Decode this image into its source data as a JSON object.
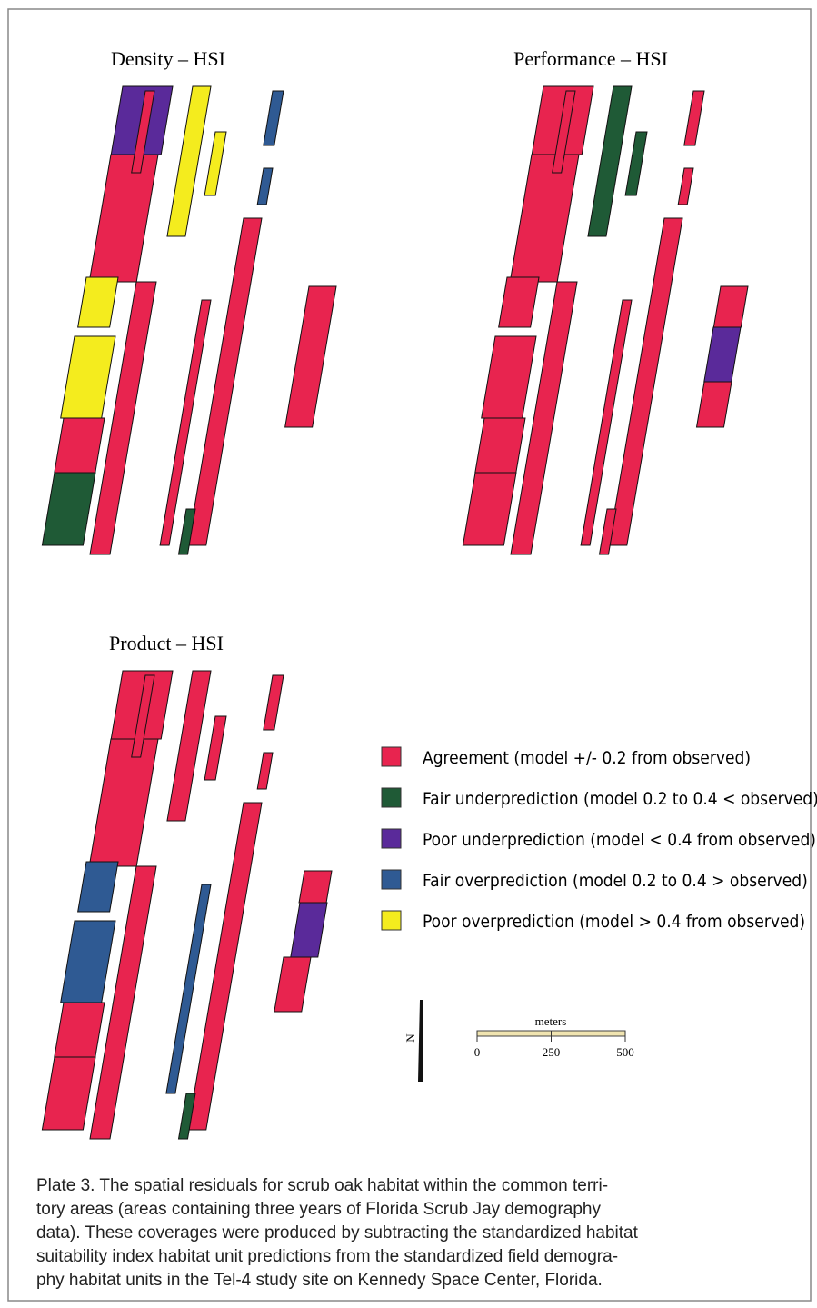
{
  "maps": [
    {
      "title": "Density – HSI"
    },
    {
      "title": "Performance – HSI"
    },
    {
      "title": "Product – HSI"
    }
  ],
  "legend": {
    "items": [
      {
        "label": "Agreement (model +/- 0.2 from observed)",
        "color": "#e8244f"
      },
      {
        "label": "Fair underprediction (model 0.2 to 0.4 < observed)",
        "color": "#1f5a36"
      },
      {
        "label": "Poor underprediction (model < 0.4 from observed)",
        "color": "#5a2a9a"
      },
      {
        "label": "Fair overprediction (model 0.2 to 0.4 > observed)",
        "color": "#2f5a93"
      },
      {
        "label": "Poor overprediction (model > 0.4 from observed)",
        "color": "#f4ec1e"
      }
    ]
  },
  "north_arrow": {
    "label": "N"
  },
  "scale_bar": {
    "unit": "meters",
    "lim": [
      0,
      500
    ],
    "ticks": [
      0,
      250,
      500
    ]
  },
  "caption": {
    "lines": [
      "Plate 3. The spatial residuals for scrub oak habitat within the common terri-",
      "tory areas (areas containing three years of Florida Scrub Jay demography",
      "data). These coverages were produced by subtracting the standardized habitat",
      "suitability index habitat unit predictions from the standardized field demogra-",
      "phy habitat units in the Tel-4 study site on Kennedy Space Center, Florida."
    ]
  }
}
